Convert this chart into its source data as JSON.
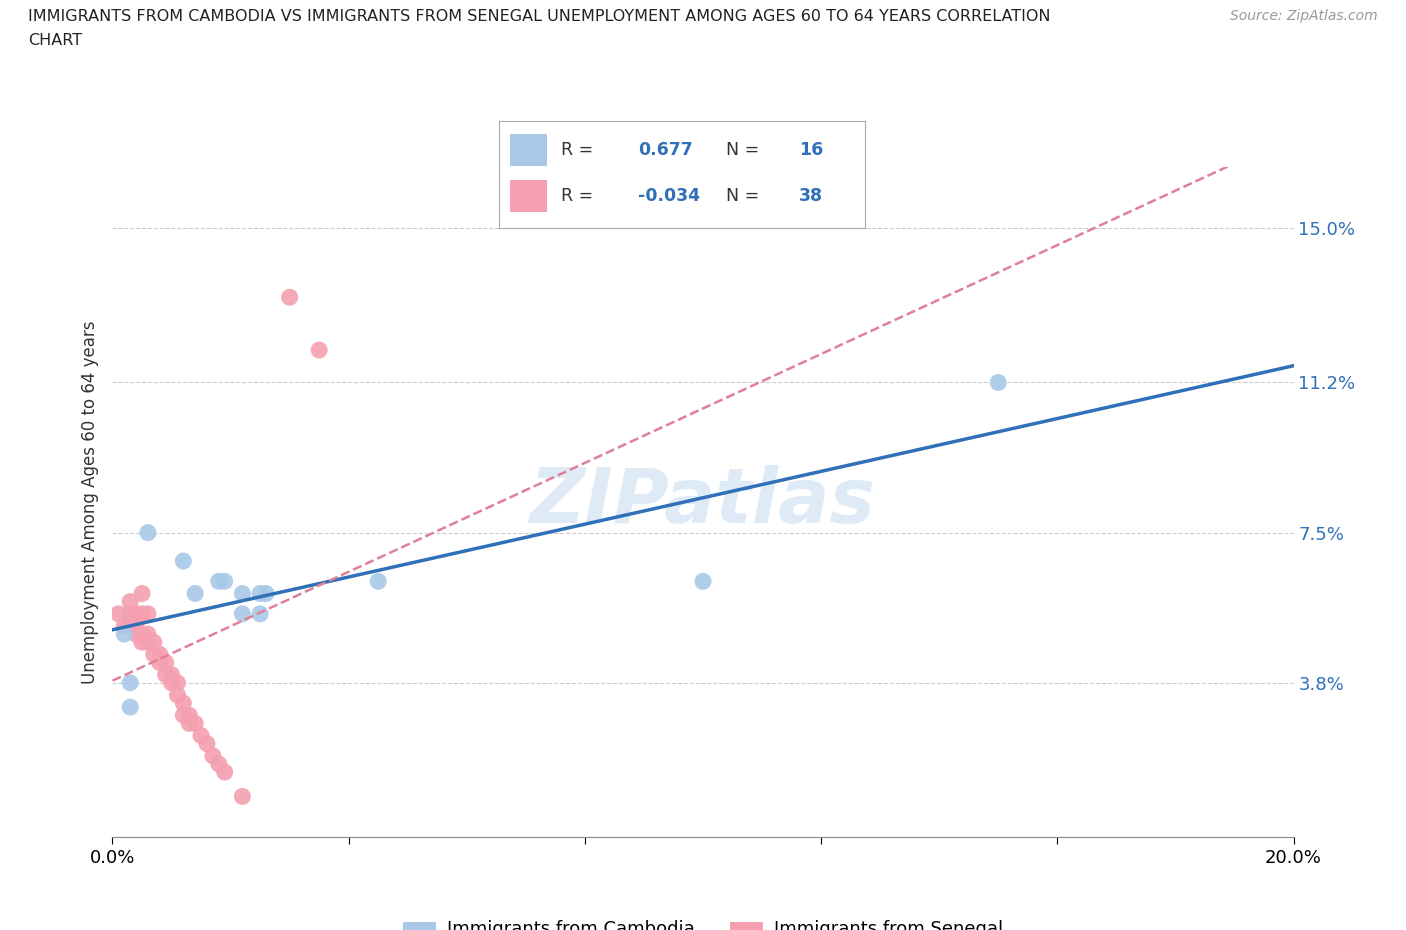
{
  "title_line1": "IMMIGRANTS FROM CAMBODIA VS IMMIGRANTS FROM SENEGAL UNEMPLOYMENT AMONG AGES 60 TO 64 YEARS CORRELATION",
  "title_line2": "CHART",
  "source_text": "Source: ZipAtlas.com",
  "ylabel": "Unemployment Among Ages 60 to 64 years",
  "xlim": [
    0.0,
    0.2
  ],
  "ylim": [
    0.0,
    0.165
  ],
  "yticks": [
    0.0,
    0.038,
    0.075,
    0.112,
    0.15
  ],
  "ytick_labels": [
    "",
    "3.8%",
    "7.5%",
    "11.2%",
    "15.0%"
  ],
  "xticks": [
    0.0,
    0.04,
    0.08,
    0.12,
    0.16,
    0.2
  ],
  "xtick_labels": [
    "0.0%",
    "",
    "",
    "",
    "",
    "20.0%"
  ],
  "cambodia_color": "#a8c8e8",
  "senegal_color": "#f4a0b0",
  "cambodia_line_color": "#3070b8",
  "senegal_line_color": "#e08098",
  "cambodia_R": 0.677,
  "cambodia_N": 16,
  "senegal_R": -0.034,
  "senegal_N": 38,
  "watermark": "ZIPatlas",
  "cambodia_x": [
    0.002,
    0.003,
    0.006,
    0.012,
    0.014,
    0.018,
    0.019,
    0.022,
    0.022,
    0.025,
    0.025,
    0.026,
    0.045,
    0.1,
    0.15,
    0.003
  ],
  "cambodia_y": [
    0.05,
    0.038,
    0.075,
    0.068,
    0.06,
    0.063,
    0.063,
    0.06,
    0.055,
    0.055,
    0.06,
    0.06,
    0.063,
    0.063,
    0.112,
    0.032
  ],
  "senegal_x": [
    0.001,
    0.002,
    0.003,
    0.003,
    0.003,
    0.004,
    0.004,
    0.004,
    0.005,
    0.005,
    0.005,
    0.005,
    0.006,
    0.006,
    0.006,
    0.007,
    0.007,
    0.008,
    0.008,
    0.009,
    0.009,
    0.01,
    0.01,
    0.011,
    0.011,
    0.012,
    0.012,
    0.013,
    0.013,
    0.014,
    0.015,
    0.016,
    0.017,
    0.018,
    0.019,
    0.022,
    0.03,
    0.035
  ],
  "senegal_y": [
    0.055,
    0.052,
    0.058,
    0.055,
    0.052,
    0.055,
    0.052,
    0.05,
    0.06,
    0.055,
    0.05,
    0.048,
    0.055,
    0.05,
    0.048,
    0.048,
    0.045,
    0.045,
    0.043,
    0.043,
    0.04,
    0.04,
    0.038,
    0.038,
    0.035,
    0.033,
    0.03,
    0.03,
    0.028,
    0.028,
    0.025,
    0.023,
    0.02,
    0.018,
    0.016,
    0.01,
    0.133,
    0.12
  ]
}
